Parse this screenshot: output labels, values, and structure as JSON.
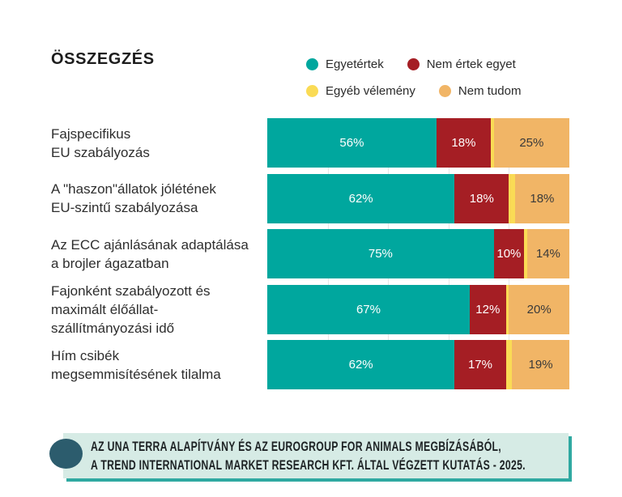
{
  "page": {
    "title": "ÖSSZEGZÉS",
    "background": "#ffffff"
  },
  "legend": {
    "items": [
      {
        "label": "Egyetértek",
        "color": "#00A79E"
      },
      {
        "label": "Nem értek egyet",
        "color": "#A51E24"
      },
      {
        "label": "Egyéb vélemény",
        "color": "#FADB55"
      },
      {
        "label": "Nem tudom",
        "color": "#F1B566"
      }
    ]
  },
  "chart_data": {
    "type": "bar",
    "orientation": "horizontal",
    "stacked": true,
    "title": "ÖSSZEGZÉS",
    "xlim": [
      0,
      100
    ],
    "value_suffix": "%",
    "gridlines_percent": [
      20,
      40,
      60,
      80
    ],
    "legend_position": "top-right",
    "categories": [
      "Fajspecifikus\nEU szabályozás",
      "A \"haszon\"állatok jólétének\nEU-szintű szabályozása",
      "Az ECC ajánlásának adaptálása\na brojler ágazatban",
      "Fajonként szabályozott és\nmaximált élőállat-\nszállítmányozási idő",
      "Hím csibék\nmegsemmisítésének tilalma"
    ],
    "series": [
      {
        "name": "Egyetértek",
        "color": "#00A79E",
        "label_color": "#ffffff",
        "show_labels": true,
        "values": [
          56,
          62,
          75,
          67,
          62
        ]
      },
      {
        "name": "Nem értek egyet",
        "color": "#A51E24",
        "label_color": "#ffffff",
        "show_labels": true,
        "values": [
          18,
          18,
          10,
          12,
          17
        ]
      },
      {
        "name": "Egyéb vélemény",
        "color": "#FADB55",
        "label_color": "#333333",
        "show_labels": false,
        "values": [
          1,
          2,
          1,
          1,
          2
        ]
      },
      {
        "name": "Nem tudom",
        "color": "#F1B566",
        "label_color": "#3a3a3a",
        "show_labels": true,
        "values": [
          25,
          18,
          14,
          20,
          19
        ]
      }
    ]
  },
  "footer": {
    "line1": "AZ UNA TERRA ALAPÍTVÁNY ÉS AZ EUROGROUP FOR ANIMALS MEGBÍZÁSÁBÓL,",
    "line2": "A TREND INTERNATIONAL MARKET RESEARCH KFT.  ÁLTAL VÉGZETT KUTATÁS - 2025.",
    "background": "#D6EBE5",
    "accent": "#2FA9A1",
    "bullet_color": "#2C5C6D"
  }
}
